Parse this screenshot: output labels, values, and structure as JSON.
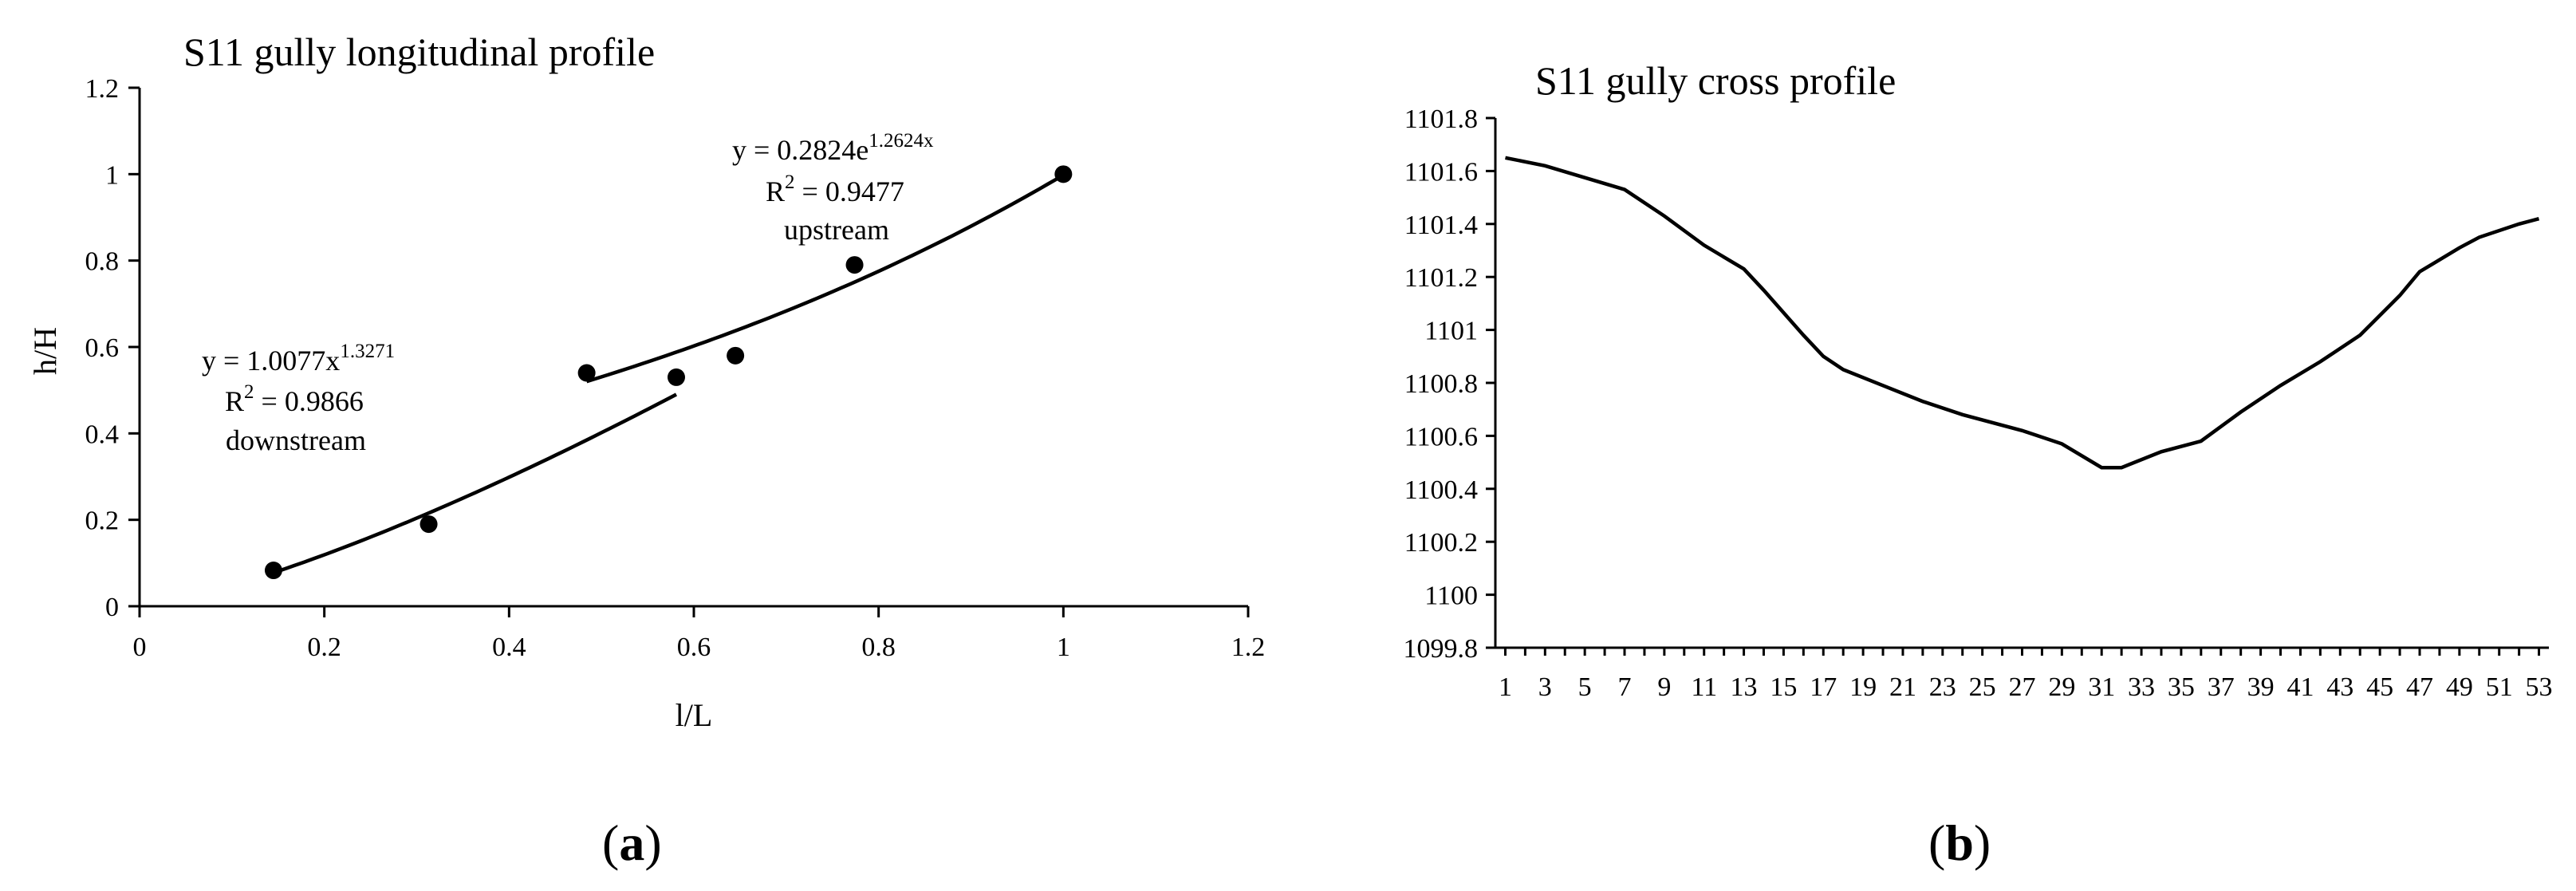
{
  "chart_data": [
    {
      "id": "a",
      "type": "scatter",
      "title": "S11 gully longitudinal profile",
      "xlabel": "l/L",
      "ylabel": "h/H",
      "xlim": [
        0,
        1.2
      ],
      "ylim": [
        0,
        1.2
      ],
      "xticks": [
        "0",
        "0.2",
        "0.4",
        "0.6",
        "0.8",
        "1",
        "1.2"
      ],
      "yticks": [
        "0",
        "0.2",
        "0.4",
        "0.6",
        "0.8",
        "1",
        "1.2"
      ],
      "grid": false,
      "points": [
        {
          "x": 0.145,
          "y": 0.083
        },
        {
          "x": 0.313,
          "y": 0.19
        },
        {
          "x": 0.484,
          "y": 0.54
        },
        {
          "x": 0.581,
          "y": 0.53
        },
        {
          "x": 0.645,
          "y": 0.58
        },
        {
          "x": 0.774,
          "y": 0.79
        },
        {
          "x": 1.0,
          "y": 1.0
        }
      ],
      "fits": [
        {
          "model": "power",
          "a": 1.0077,
          "b": 1.3271,
          "x_range": [
            0.145,
            0.581
          ],
          "eq_prefix": "y = 1.0077x",
          "eq_exp": "1.3271",
          "r2_prefix": "R",
          "r2_sup": "2",
          "r2_value": " = 0.9866",
          "label": "downstream"
        },
        {
          "model": "exponential",
          "a": 0.2824,
          "b": 1.2624,
          "x_range": [
            0.484,
            1.0
          ],
          "eq_prefix": "y = 0.2824e",
          "eq_exp": "1.2624x",
          "r2_prefix": "R",
          "r2_sup": "2",
          "r2_value": " = 0.9477",
          "label": "upstream"
        }
      ],
      "caption_open": "(",
      "caption_letter": "a",
      "caption_close": ")"
    },
    {
      "id": "b",
      "type": "line",
      "title": "S11 gully cross profile",
      "xlabel": "",
      "ylabel": "",
      "ylim": [
        1099.8,
        1101.8
      ],
      "yticks": [
        "1099.8",
        "1100",
        "1100.2",
        "1100.4",
        "1100.6",
        "1100.8",
        "1101",
        "1101.2",
        "1101.4",
        "1101.6",
        "1101.8"
      ],
      "xticks": [
        "1",
        "3",
        "5",
        "7",
        "9",
        "11",
        "13",
        "15",
        "17",
        "19",
        "21",
        "23",
        "25",
        "27",
        "29",
        "31",
        "33",
        "35",
        "37",
        "39",
        "41",
        "43",
        "45",
        "47",
        "49",
        "51",
        "53"
      ],
      "grid": false,
      "series": [
        {
          "x": [
            1,
            3,
            7,
            9,
            11,
            13,
            14,
            16,
            17,
            18,
            20,
            22,
            24,
            27,
            29,
            31,
            32,
            34,
            36,
            38,
            40,
            42,
            44,
            46,
            47,
            49,
            50,
            52,
            53
          ],
          "values": [
            1101.65,
            1101.62,
            1101.53,
            1101.43,
            1101.32,
            1101.23,
            1101.15,
            1100.98,
            1100.9,
            1100.85,
            1100.79,
            1100.73,
            1100.68,
            1100.62,
            1100.57,
            1100.48,
            1100.48,
            1100.54,
            1100.58,
            1100.69,
            1100.79,
            1100.88,
            1100.98,
            1101.13,
            1101.22,
            1101.31,
            1101.35,
            1101.4,
            1101.42
          ]
        }
      ],
      "caption_open": "(",
      "caption_letter": "b",
      "caption_close": ")"
    }
  ]
}
